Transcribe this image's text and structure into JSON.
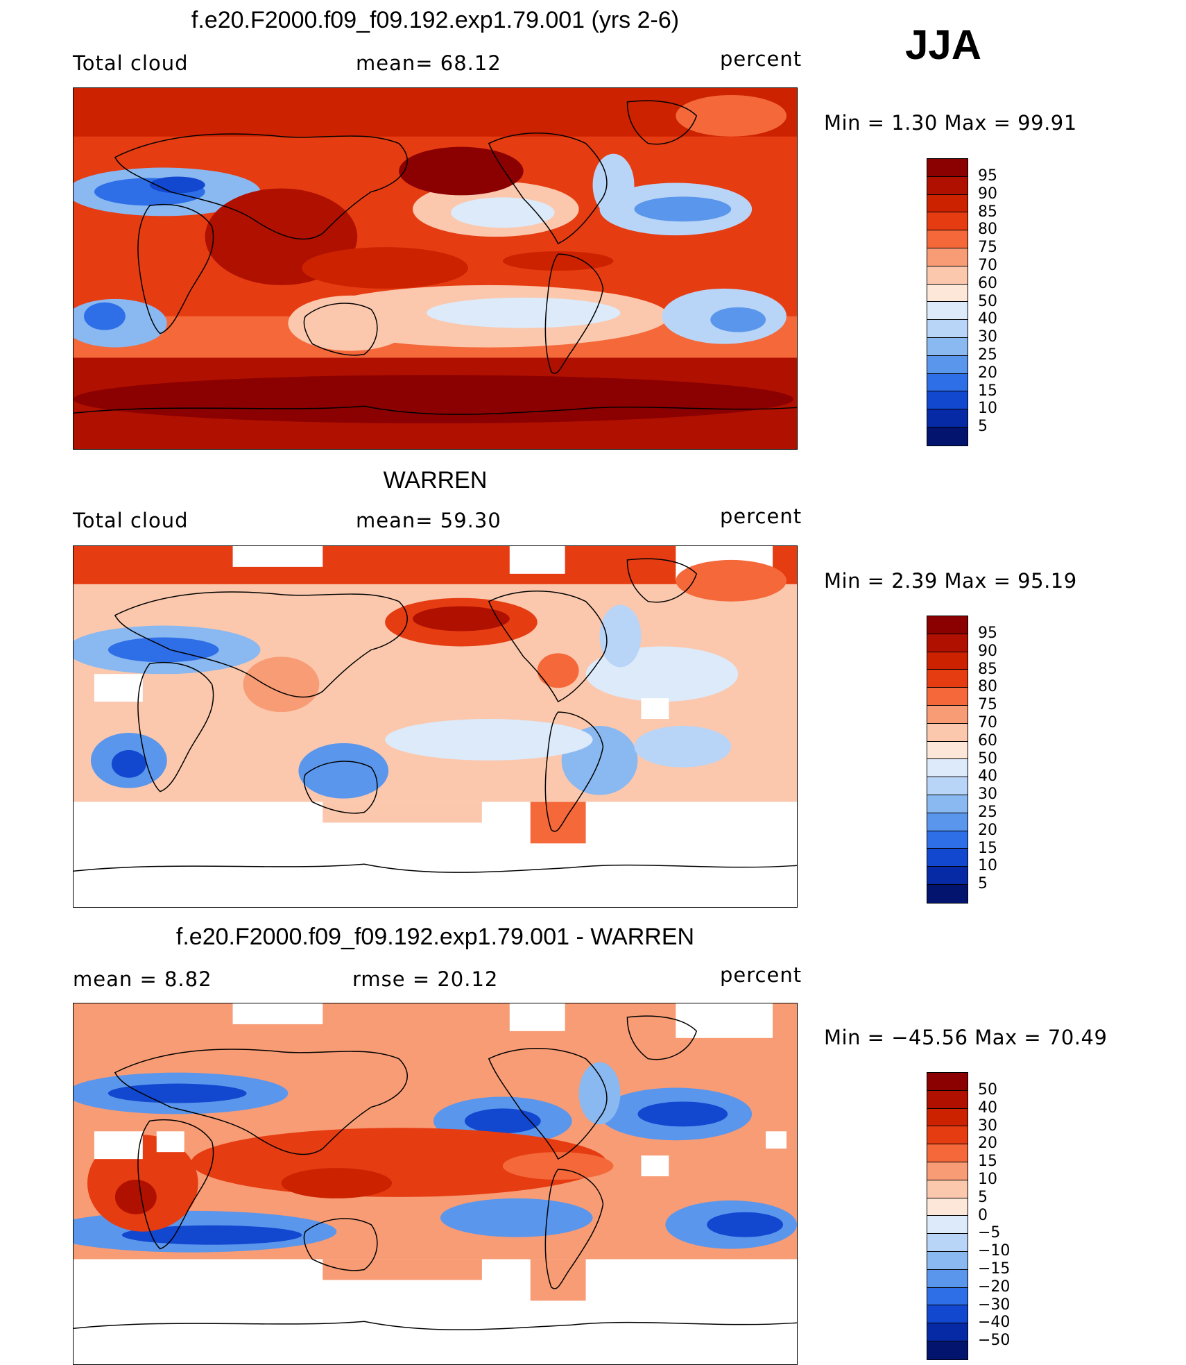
{
  "season": "JJA",
  "panels": [
    {
      "title": "f.e20.F2000.f09_f09.192.exp1.79.001 (yrs 2-6)",
      "left": "Total cloud",
      "middle": "mean=   68.12",
      "units": "percent",
      "minmax": "Min  =     1.30  Max  =    99.91",
      "colorbar": [
        "95",
        "90",
        "85",
        "80",
        "75",
        "70",
        "60",
        "50",
        "40",
        "30",
        "25",
        "20",
        "15",
        "10",
        "5"
      ],
      "colors": [
        "#8b0000",
        "#b01000",
        "#cc2200",
        "#e63c12",
        "#f4683a",
        "#f79c75",
        "#fbc8ad",
        "#fde7d8",
        "#dceafa",
        "#b8d4f6",
        "#8ab8f0",
        "#5a96ec",
        "#2e6fe8",
        "#1247cf",
        "#062aa6",
        "#02146e"
      ]
    },
    {
      "title": "WARREN",
      "left": "Total cloud",
      "middle": "mean=   59.30",
      "units": "percent",
      "minmax": "Min  =     2.39  Max  =    95.19",
      "colorbar": [
        "95",
        "90",
        "85",
        "80",
        "75",
        "70",
        "60",
        "50",
        "40",
        "30",
        "25",
        "20",
        "15",
        "10",
        "5"
      ],
      "colors": [
        "#8b0000",
        "#b01000",
        "#cc2200",
        "#e63c12",
        "#f4683a",
        "#f79c75",
        "#fbc8ad",
        "#fde7d8",
        "#dceafa",
        "#b8d4f6",
        "#8ab8f0",
        "#5a96ec",
        "#2e6fe8",
        "#1247cf",
        "#062aa6",
        "#02146e"
      ]
    },
    {
      "title": "f.e20.F2000.f09_f09.192.exp1.79.001 - WARREN",
      "left": "mean  =     8.82",
      "middle": "rmse  =    20.12",
      "units": "percent",
      "minmax": "Min  =  −45.56  Max  =    70.49",
      "colorbar": [
        "50",
        "40",
        "30",
        "20",
        "15",
        "10",
        "5",
        "0",
        "−5",
        "−10",
        "−15",
        "−20",
        "−30",
        "−40",
        "−50"
      ],
      "colors": [
        "#8b0000",
        "#b01000",
        "#cc2200",
        "#e63c12",
        "#f4683a",
        "#f79c75",
        "#fbc8ad",
        "#fde7d8",
        "#dceafa",
        "#b8d4f6",
        "#8ab8f0",
        "#5a96ec",
        "#2e6fe8",
        "#1247cf",
        "#062aa6",
        "#02146e"
      ]
    }
  ]
}
